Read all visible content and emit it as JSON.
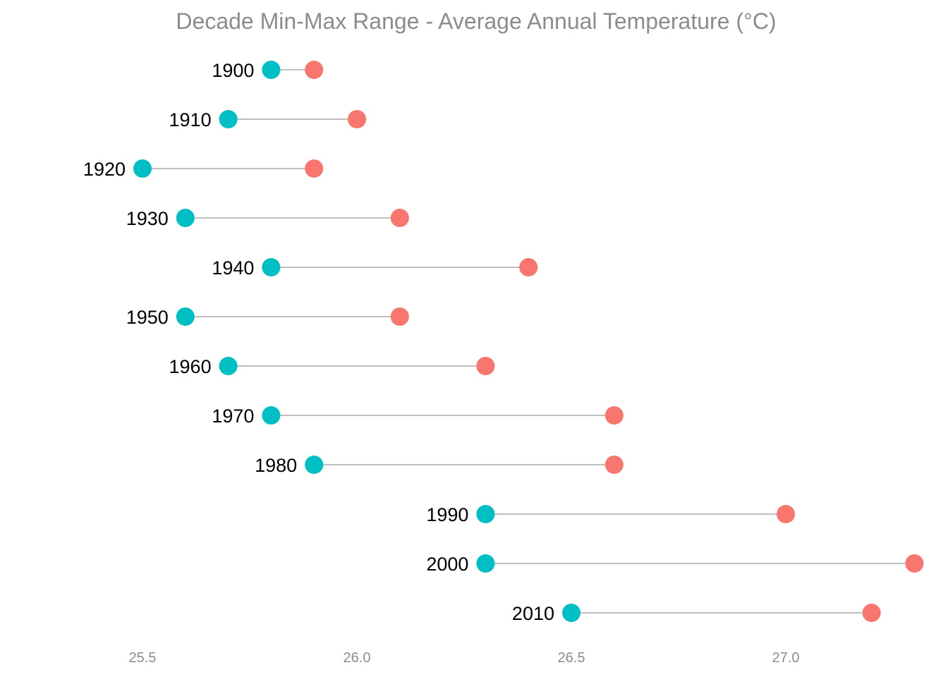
{
  "chart_data": {
    "type": "dumbbell",
    "title": "Decade Min-Max Range - Average Annual Temperature (°C)",
    "xlabel": "",
    "ylabel": "",
    "xlim": [
      25.5,
      27.3
    ],
    "xticks": [
      25.5,
      26.0,
      26.5,
      27.0
    ],
    "xtick_labels": [
      "25.5",
      "26.0",
      "26.5",
      "27.0"
    ],
    "grid": false,
    "legend": "none",
    "colors": {
      "min": "#00bfc4",
      "max": "#f8766d"
    },
    "categories": [
      "1900",
      "1910",
      "1920",
      "1930",
      "1940",
      "1950",
      "1960",
      "1970",
      "1980",
      "1990",
      "2000",
      "2010"
    ],
    "series": [
      {
        "values": [
          25.8,
          25.7,
          25.5,
          25.6,
          25.8,
          25.6,
          25.7,
          25.8,
          25.9,
          26.3,
          26.3,
          26.5
        ]
      },
      {
        "values": [
          25.9,
          26.0,
          25.9,
          26.1,
          26.4,
          26.1,
          26.3,
          26.6,
          26.6,
          27.0,
          27.3,
          27.2
        ]
      }
    ]
  }
}
